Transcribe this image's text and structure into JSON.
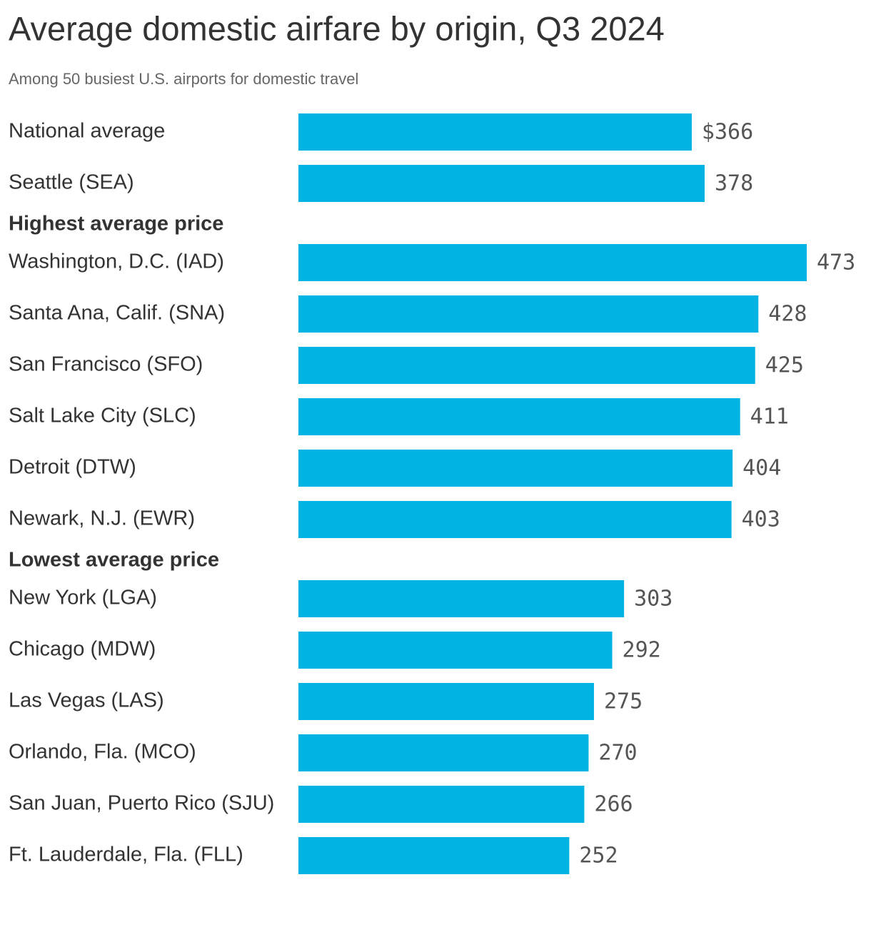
{
  "chart_data": {
    "type": "bar",
    "title": "Average domestic airfare by origin, Q3 2024",
    "subtitle": "Among 50 busiest U.S. airports for domestic travel",
    "color": "#00b3e3",
    "groups": [
      {
        "categories": [
          "National average",
          "Seattle (SEA)"
        ],
        "values": [
          366,
          378
        ],
        "value_labels": [
          "$366",
          "378"
        ]
      },
      {
        "name": "Highest average price",
        "categories": [
          "Washington, D.C. (IAD)",
          "Santa Ana, Calif. (SNA)",
          "San Francisco (SFO)",
          "Salt Lake City (SLC)",
          "Detroit (DTW)",
          "Newark, N.J. (EWR)"
        ],
        "values": [
          473,
          428,
          425,
          411,
          404,
          403
        ],
        "value_labels": [
          "473",
          "428",
          "425",
          "411",
          "404",
          "403"
        ]
      },
      {
        "name": "Lowest average price",
        "categories": [
          "New York (LGA)",
          "Chicago (MDW)",
          "Las Vegas (LAS)",
          "Orlando, Fla. (MCO)",
          "San Juan, Puerto Rico (SJU)",
          "Ft. Lauderdale, Fla. (FLL)"
        ],
        "values": [
          303,
          292,
          275,
          270,
          266,
          252
        ],
        "value_labels": [
          "303",
          "292",
          "275",
          "270",
          "266",
          "252"
        ]
      }
    ]
  }
}
